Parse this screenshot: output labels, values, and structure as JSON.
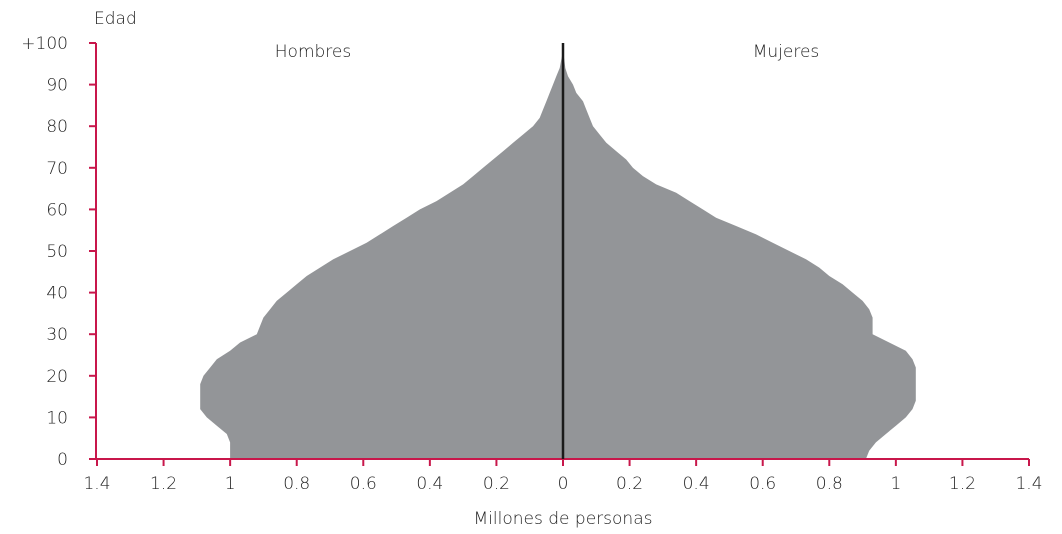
{
  "chart_data": {
    "type": "area",
    "title": "",
    "ylabel": "Edad",
    "xlabel": "Millones de personas",
    "left_label": "Hombres",
    "right_label": "Mujeres",
    "xlim": [
      -1.4,
      1.4
    ],
    "ylim": [
      0,
      100
    ],
    "x_ticks": [
      -1.4,
      -1.2,
      -1,
      -0.8,
      -0.6,
      -0.4,
      -0.2,
      0,
      0.2,
      0.4,
      0.6,
      0.8,
      1,
      1.2,
      1.4
    ],
    "x_tick_labels": [
      "1.4",
      "1.2",
      "1",
      "0.8",
      "0.6",
      "0.4",
      "0.2",
      "0",
      "0.2",
      "0.4",
      "0.6",
      "0.8",
      "1",
      "1.2",
      "1.4"
    ],
    "y_ticks": [
      0,
      10,
      20,
      30,
      40,
      50,
      60,
      70,
      80,
      90,
      100
    ],
    "y_tick_labels": [
      "0",
      "10",
      "20",
      "30",
      "40",
      "50",
      "60",
      "70",
      "80",
      "90",
      "+100"
    ],
    "grid": false,
    "colors": {
      "area": "#939598",
      "axis": "#c8174b",
      "center_line": "#1a1a1a"
    },
    "series": [
      {
        "name": "Hombres",
        "ages": [
          0,
          2,
          4,
          6,
          8,
          10,
          12,
          14,
          16,
          18,
          20,
          22,
          24,
          26,
          28,
          30,
          32,
          34,
          36,
          38,
          40,
          42,
          44,
          46,
          48,
          50,
          52,
          54,
          56,
          58,
          60,
          62,
          64,
          66,
          68,
          70,
          72,
          74,
          76,
          78,
          80,
          82,
          84,
          86,
          88,
          90,
          92,
          94,
          96,
          98,
          100
        ],
        "values": [
          1.0,
          1.0,
          1.0,
          1.01,
          1.04,
          1.07,
          1.09,
          1.09,
          1.09,
          1.09,
          1.08,
          1.06,
          1.04,
          1.0,
          0.97,
          0.92,
          0.91,
          0.9,
          0.88,
          0.86,
          0.83,
          0.8,
          0.77,
          0.73,
          0.69,
          0.64,
          0.59,
          0.55,
          0.51,
          0.47,
          0.43,
          0.38,
          0.34,
          0.3,
          0.27,
          0.24,
          0.21,
          0.18,
          0.15,
          0.12,
          0.09,
          0.07,
          0.06,
          0.05,
          0.04,
          0.03,
          0.02,
          0.01,
          0.005,
          0,
          0
        ]
      },
      {
        "name": "Mujeres",
        "ages": [
          0,
          2,
          4,
          6,
          8,
          10,
          12,
          14,
          16,
          18,
          20,
          22,
          24,
          26,
          28,
          30,
          32,
          34,
          36,
          38,
          40,
          42,
          44,
          46,
          48,
          50,
          52,
          54,
          56,
          58,
          60,
          62,
          64,
          66,
          68,
          70,
          72,
          74,
          76,
          78,
          80,
          82,
          84,
          86,
          88,
          90,
          92,
          94,
          96,
          98,
          100
        ],
        "values": [
          0.91,
          0.92,
          0.94,
          0.97,
          1.0,
          1.03,
          1.05,
          1.06,
          1.06,
          1.06,
          1.06,
          1.06,
          1.05,
          1.03,
          0.98,
          0.93,
          0.93,
          0.93,
          0.92,
          0.9,
          0.87,
          0.84,
          0.8,
          0.77,
          0.73,
          0.68,
          0.63,
          0.58,
          0.52,
          0.46,
          0.42,
          0.38,
          0.34,
          0.28,
          0.24,
          0.21,
          0.19,
          0.16,
          0.13,
          0.11,
          0.09,
          0.08,
          0.07,
          0.06,
          0.04,
          0.03,
          0.015,
          0.007,
          0.004,
          0,
          0
        ]
      }
    ]
  }
}
